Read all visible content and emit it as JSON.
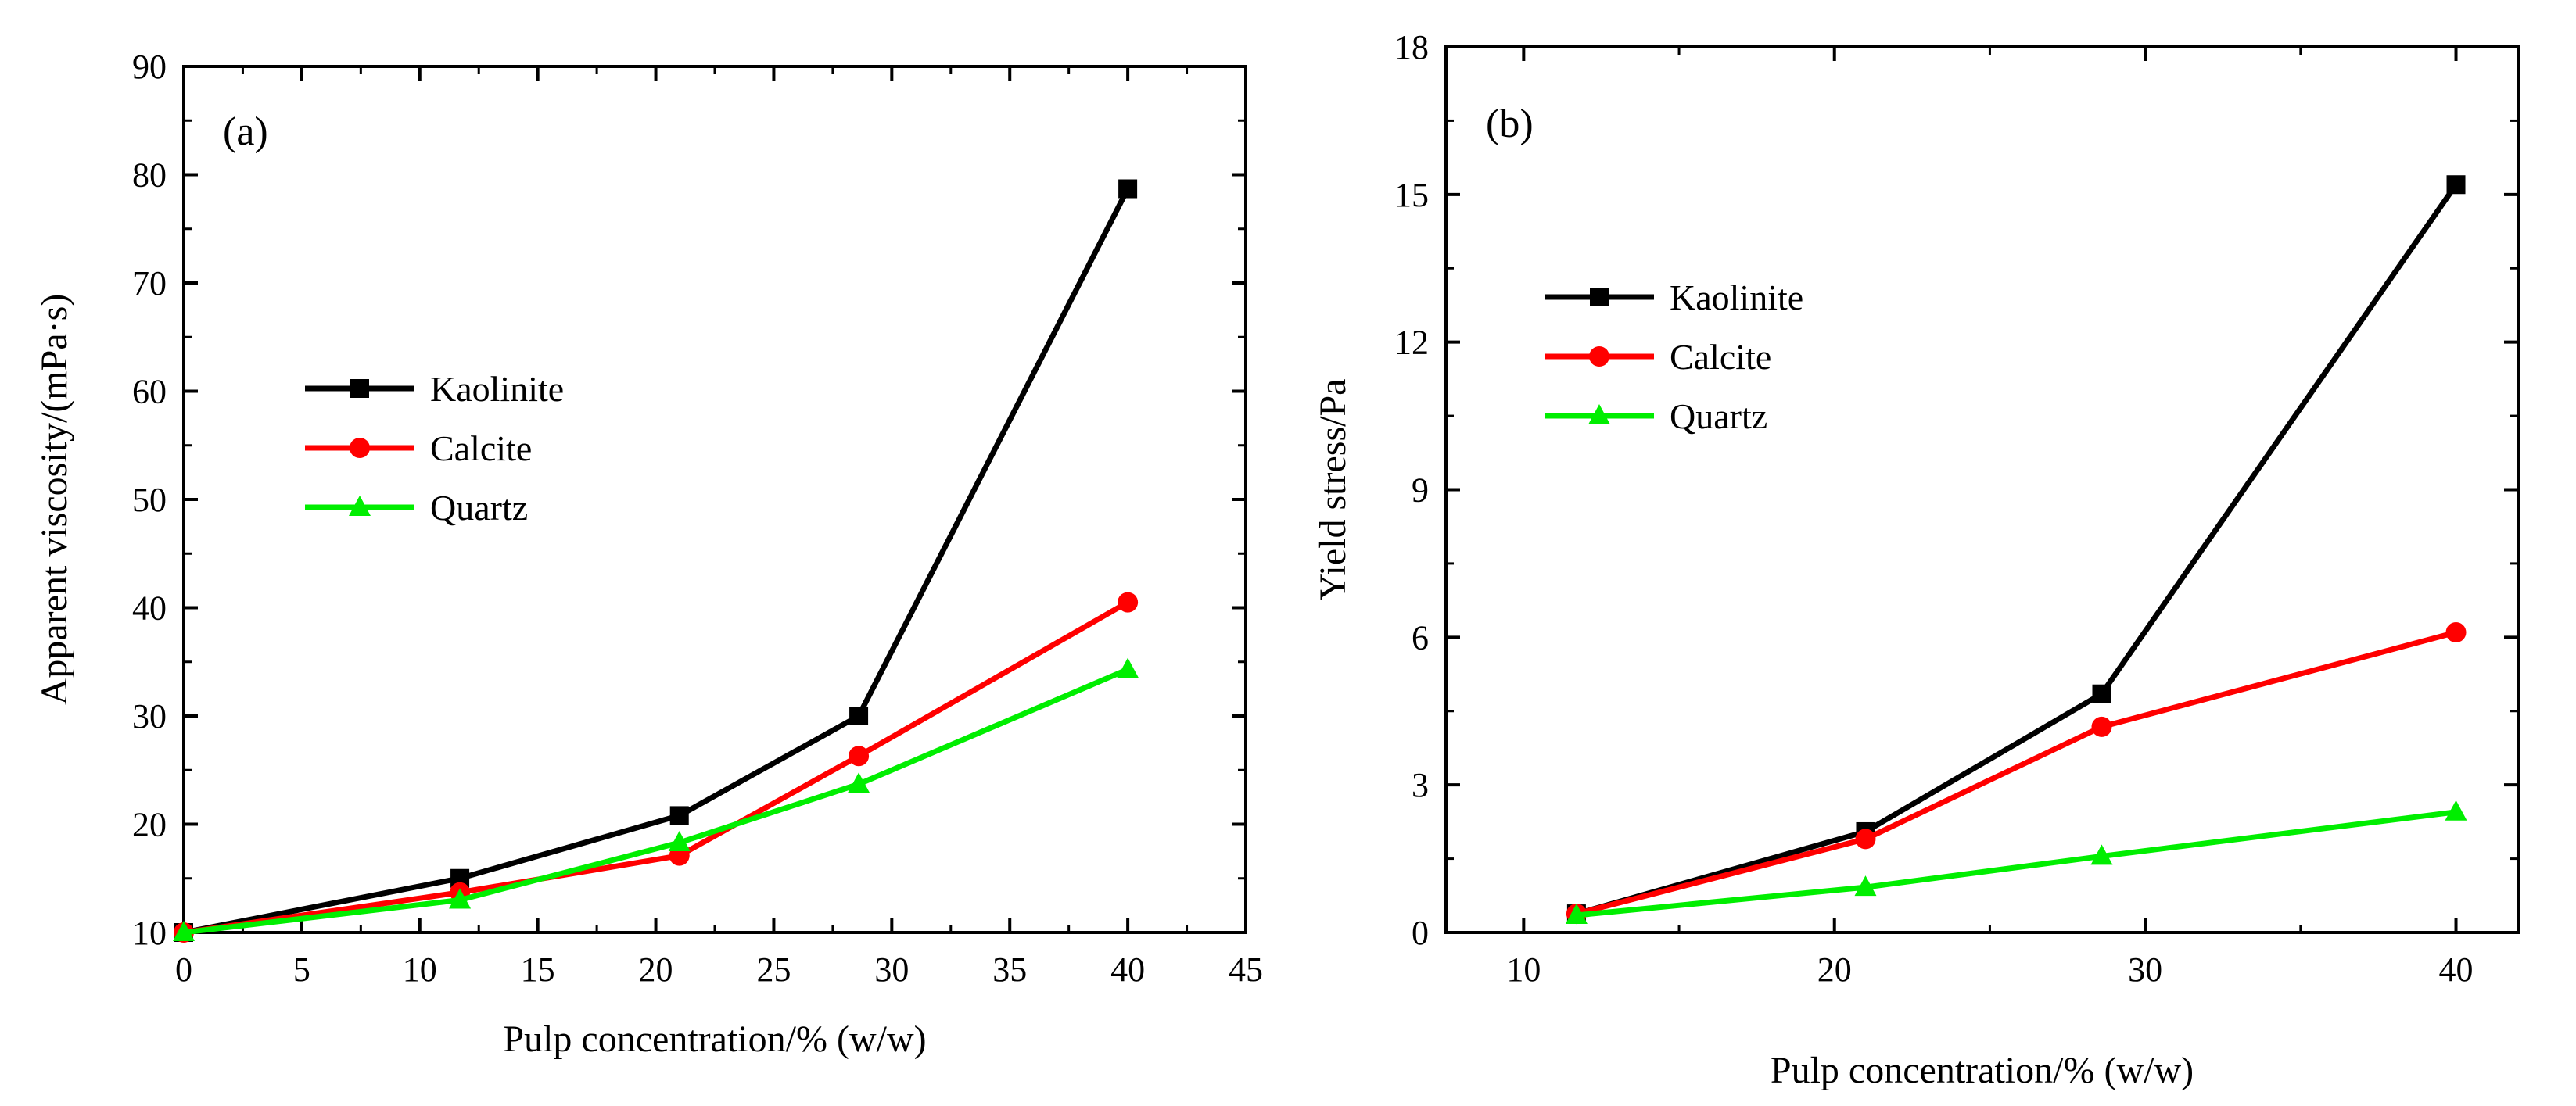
{
  "chart_data": [
    {
      "type": "line",
      "panel_label": "(a)",
      "xlabel": "Pulp concentration/% (w/w)",
      "ylabel": "Apparent viscosity/(mPa·s)",
      "xlim": [
        0,
        45
      ],
      "ylim": [
        10,
        90
      ],
      "xticks": [
        0,
        5,
        10,
        15,
        20,
        25,
        30,
        35,
        40,
        45
      ],
      "yticks": [
        10,
        20,
        30,
        40,
        50,
        60,
        70,
        80,
        90
      ],
      "legend_position": "center-left",
      "series": [
        {
          "name": "Kaolinite",
          "color": "#000000",
          "marker": "square",
          "x": [
            0,
            11.7,
            21,
            28.6,
            40
          ],
          "y": [
            10,
            15,
            20.8,
            30,
            78.7
          ]
        },
        {
          "name": "Calcite",
          "color": "#ff0000",
          "marker": "circle",
          "x": [
            0,
            11.7,
            21,
            28.6,
            40
          ],
          "y": [
            10,
            13.7,
            17.1,
            26.3,
            40.5
          ]
        },
        {
          "name": "Quartz",
          "color": "#00ee00",
          "marker": "triangle",
          "x": [
            0,
            11.7,
            21,
            28.6,
            40
          ],
          "y": [
            10,
            13,
            18.3,
            23.7,
            34.3
          ]
        }
      ]
    },
    {
      "type": "line",
      "panel_label": "(b)",
      "xlabel": "Pulp concentration/% (w/w)",
      "ylabel": "Yield stress/Pa",
      "xlim": [
        7.5,
        42
      ],
      "ylim": [
        0,
        18
      ],
      "xticks": [
        10,
        20,
        30,
        40
      ],
      "yticks": [
        0,
        3,
        6,
        9,
        12,
        15,
        18
      ],
      "legend_position": "top-left",
      "series": [
        {
          "name": "Kaolinite",
          "color": "#000000",
          "marker": "square",
          "x": [
            11.7,
            21,
            28.6,
            40
          ],
          "y": [
            0.38,
            2.05,
            4.85,
            15.2
          ]
        },
        {
          "name": "Calcite",
          "color": "#ff0000",
          "marker": "circle",
          "x": [
            11.7,
            21,
            28.6,
            40
          ],
          "y": [
            0.38,
            1.9,
            4.18,
            6.1
          ]
        },
        {
          "name": "Quartz",
          "color": "#00ee00",
          "marker": "triangle",
          "x": [
            11.7,
            21,
            28.6,
            40
          ],
          "y": [
            0.35,
            0.92,
            1.55,
            2.45
          ]
        }
      ]
    }
  ]
}
